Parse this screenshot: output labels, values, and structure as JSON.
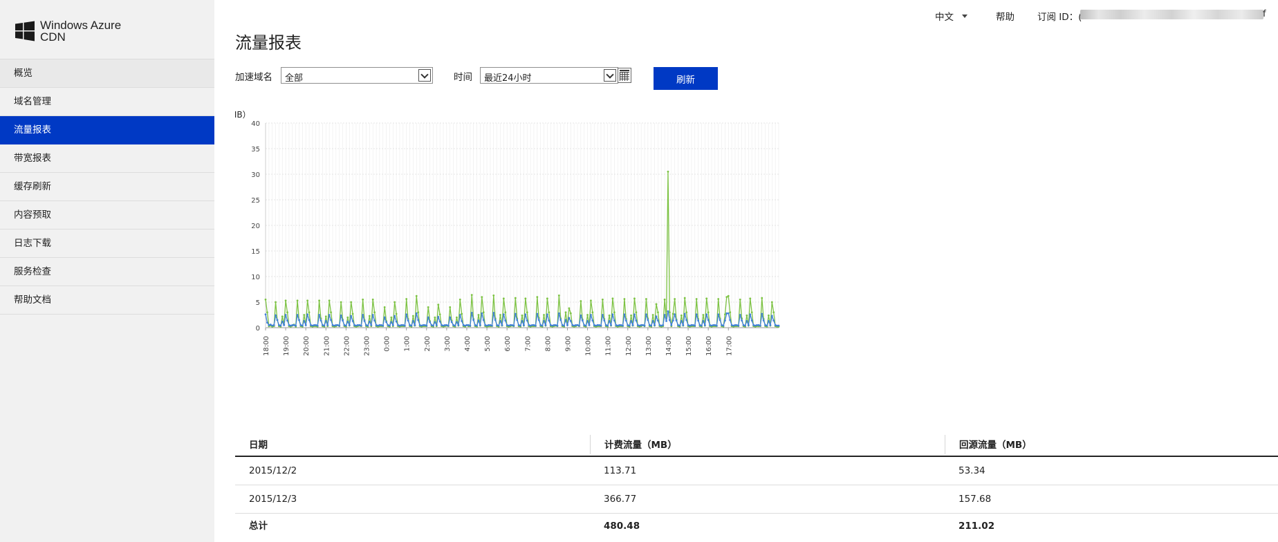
{
  "app": {
    "brand_line1": "Windows Azure",
    "brand_line2": "CDN"
  },
  "topbar": {
    "language": "中文",
    "help": "帮助",
    "subscription_label": "订阅 ID：",
    "subscription_prefix": "(",
    "subscription_suffix": "f"
  },
  "sidebar": {
    "items": [
      {
        "label": "概览"
      },
      {
        "label": "域名管理"
      },
      {
        "label": "流量报表",
        "active": true
      },
      {
        "label": "带宽报表"
      },
      {
        "label": "缓存刷新"
      },
      {
        "label": "内容预取"
      },
      {
        "label": "日志下载"
      },
      {
        "label": "服务检查"
      },
      {
        "label": "帮助文档"
      }
    ]
  },
  "main": {
    "title": "流量报表",
    "filters": {
      "domain_label": "加速域名",
      "domain_value": "全部",
      "time_label": "时间",
      "time_value": "最近24小时",
      "refresh_label": "刷新"
    }
  },
  "colors": {
    "accent": "#0039c4",
    "series_green": "#7cc242",
    "series_blue": "#3f7fd9"
  },
  "chart_data": {
    "type": "line",
    "ylabel": "流量（MB）",
    "ylim": [
      0,
      40
    ],
    "yticks": [
      "0",
      "5",
      "10",
      "15",
      "20",
      "25",
      "30",
      "35",
      "40"
    ],
    "xticks": [
      "18:00",
      "19:00",
      "20:00",
      "21:00",
      "22:00",
      "23:00",
      "0:00",
      "1:00",
      "2:00",
      "3:00",
      "4:00",
      "5:00",
      "6:00",
      "7:00",
      "8:00",
      "9:00",
      "10:00",
      "11:00",
      "12:00",
      "13:00",
      "14:00",
      "15:00",
      "16:00",
      "17:00"
    ],
    "grid": true,
    "x_start_hour": 18,
    "x_step_minutes": 5,
    "series": [
      {
        "color": "#7cc242",
        "values": [
          5.5,
          3.0,
          0.3,
          0.4,
          0.2,
          0.3,
          5.0,
          1.5,
          0.3,
          0.2,
          2.2,
          0.6,
          5.3,
          3.0,
          0.3,
          0.2,
          0.4,
          0.6,
          0.2,
          5.3,
          1.5,
          0.3,
          0.2,
          2.5,
          0.5,
          5.3,
          3.0,
          0.3,
          0.2,
          0.3,
          0.3,
          0.2,
          5.3,
          1.8,
          0.3,
          0.2,
          2.2,
          0.3,
          5.3,
          3.0,
          0.3,
          0.2,
          0.3,
          0.5,
          0.3,
          5.0,
          1.6,
          0.3,
          0.2,
          2.0,
          0.4,
          5.0,
          2.7,
          0.3,
          0.2,
          0.3,
          0.4,
          0.3,
          5.5,
          1.5,
          0.3,
          0.2,
          2.3,
          0.3,
          5.5,
          3.0,
          0.3,
          0.2,
          0.3,
          0.3,
          0.3,
          4.0,
          1.3,
          0.3,
          0.2,
          2.0,
          0.3,
          5.0,
          2.7,
          0.3,
          0.2,
          0.3,
          0.3,
          0.3,
          5.6,
          1.7,
          0.3,
          0.2,
          2.3,
          0.4,
          6.2,
          3.0,
          0.3,
          0.2,
          0.3,
          0.3,
          0.3,
          4.0,
          1.3,
          0.3,
          0.2,
          2.0,
          0.3,
          4.5,
          2.6,
          0.3,
          0.2,
          0.3,
          0.4,
          0.3,
          4.0,
          1.4,
          0.3,
          0.2,
          2.0,
          0.4,
          5.5,
          2.7,
          0.3,
          0.2,
          0.5,
          0.3,
          0.3,
          6.4,
          1.7,
          0.3,
          0.2,
          2.5,
          0.4,
          6.0,
          3.0,
          0.3,
          0.2,
          0.3,
          0.3,
          0.3,
          6.3,
          1.8,
          0.3,
          0.2,
          2.5,
          0.4,
          5.7,
          3.0,
          0.3,
          0.2,
          0.3,
          0.4,
          0.3,
          5.8,
          1.8,
          0.3,
          0.2,
          2.4,
          0.4,
          5.7,
          3.0,
          0.3,
          0.2,
          0.3,
          0.3,
          0.3,
          6.0,
          1.9,
          0.3,
          0.2,
          2.5,
          0.4,
          5.7,
          3.0,
          0.3,
          0.2,
          0.3,
          0.4,
          0.3,
          6.3,
          1.8,
          0.3,
          0.2,
          3.0,
          0.5,
          3.8,
          2.8,
          0.3,
          0.2,
          0.3,
          0.5,
          0.3,
          5.2,
          1.6,
          0.3,
          0.2,
          2.5,
          0.5,
          5.3,
          3.0,
          0.3,
          0.2,
          0.3,
          0.3,
          0.3,
          5.5,
          1.7,
          0.3,
          0.2,
          2.4,
          0.4,
          5.7,
          3.0,
          0.3,
          0.2,
          0.3,
          0.3,
          0.3,
          5.6,
          1.7,
          0.3,
          0.2,
          2.4,
          0.4,
          5.7,
          3.0,
          0.3,
          0.2,
          0.3,
          0.5,
          0.3,
          5.6,
          1.8,
          0.3,
          0.2,
          2.5,
          0.4,
          4.6,
          3.0,
          0.3,
          0.2,
          0.3,
          5.5,
          1.8,
          30.5,
          3.0,
          0.3,
          2.7,
          5.6,
          1.6,
          0.3,
          0.2,
          2.4,
          0.4,
          5.8,
          3.0,
          0.3,
          0.2,
          0.3,
          0.3,
          0.3,
          5.6,
          1.7,
          0.3,
          0.2,
          2.5,
          0.4,
          5.7,
          3.0,
          0.3,
          0.2,
          0.3,
          0.3,
          0.3,
          5.6,
          1.8,
          0.3,
          0.2,
          2.6,
          6.0,
          6.2,
          3.0,
          0.3,
          0.2,
          0.3,
          0.3,
          0.3,
          5.5,
          1.8,
          0.3,
          0.2,
          2.4,
          0.4,
          5.7,
          3.0,
          0.3,
          0.2,
          0.3,
          0.3,
          0.3,
          5.8,
          1.7,
          0.3,
          0.2,
          2.4,
          0.4,
          5.0,
          3.0,
          0.3,
          0.2,
          0.2
        ]
      },
      {
        "color": "#3f7fd9",
        "values": [
          2.6,
          1.0,
          0.5,
          0.6,
          0.4,
          0.5,
          2.4,
          1.5,
          0.5,
          0.4,
          1.2,
          0.5,
          2.5,
          1.4,
          0.5,
          0.4,
          0.5,
          0.5,
          0.4,
          2.5,
          1.5,
          0.5,
          0.4,
          1.3,
          0.5,
          2.6,
          1.5,
          0.5,
          0.4,
          0.5,
          0.5,
          0.4,
          2.5,
          1.4,
          0.5,
          0.4,
          1.3,
          0.5,
          2.5,
          1.5,
          0.5,
          0.4,
          0.5,
          0.5,
          0.4,
          2.4,
          1.4,
          0.5,
          0.4,
          1.2,
          0.5,
          2.3,
          1.3,
          0.5,
          0.4,
          0.5,
          0.5,
          0.4,
          2.5,
          1.3,
          0.5,
          0.4,
          1.2,
          0.5,
          2.5,
          1.4,
          0.5,
          0.4,
          0.5,
          0.5,
          0.4,
          2.0,
          1.1,
          0.5,
          0.4,
          1.1,
          0.5,
          2.3,
          1.2,
          0.5,
          0.4,
          0.5,
          0.5,
          0.4,
          2.6,
          1.4,
          0.5,
          0.4,
          1.3,
          0.5,
          2.8,
          1.5,
          0.5,
          0.4,
          0.5,
          0.5,
          0.4,
          2.0,
          1.1,
          0.5,
          0.4,
          1.1,
          0.5,
          2.1,
          1.2,
          0.5,
          0.4,
          0.5,
          0.5,
          0.4,
          2.0,
          1.1,
          0.5,
          0.4,
          1.1,
          0.5,
          2.5,
          1.3,
          0.5,
          0.4,
          0.5,
          0.5,
          0.4,
          2.9,
          1.5,
          0.5,
          0.4,
          1.4,
          0.5,
          2.8,
          1.5,
          0.5,
          0.4,
          0.5,
          0.5,
          0.4,
          2.9,
          1.5,
          0.5,
          0.4,
          1.3,
          0.5,
          2.6,
          1.4,
          0.5,
          0.4,
          0.5,
          0.5,
          0.4,
          2.7,
          1.5,
          0.5,
          0.4,
          1.3,
          0.5,
          2.6,
          1.4,
          0.5,
          0.4,
          0.5,
          0.5,
          0.4,
          2.7,
          1.5,
          0.5,
          0.4,
          1.3,
          0.5,
          2.6,
          1.4,
          0.5,
          0.4,
          0.5,
          0.5,
          0.4,
          2.8,
          1.5,
          0.5,
          0.4,
          1.5,
          0.5,
          1.9,
          1.3,
          0.5,
          0.4,
          0.5,
          0.5,
          0.4,
          2.4,
          1.4,
          0.5,
          0.4,
          1.3,
          0.5,
          2.5,
          1.4,
          0.5,
          0.4,
          0.5,
          0.5,
          0.4,
          2.5,
          1.4,
          0.5,
          0.4,
          1.3,
          0.5,
          2.6,
          1.4,
          0.5,
          0.4,
          0.5,
          0.5,
          0.4,
          2.6,
          1.4,
          0.5,
          0.4,
          1.3,
          0.5,
          2.6,
          1.4,
          0.5,
          0.4,
          0.5,
          0.5,
          0.4,
          2.6,
          1.5,
          0.5,
          0.4,
          1.3,
          0.5,
          2.2,
          1.4,
          0.5,
          0.4,
          0.5,
          2.5,
          1.3,
          3.2,
          1.5,
          0.5,
          1.4,
          2.6,
          1.4,
          0.5,
          0.4,
          1.3,
          0.5,
          2.7,
          1.5,
          0.5,
          0.4,
          0.5,
          0.5,
          0.4,
          2.6,
          1.4,
          0.5,
          0.4,
          1.3,
          0.5,
          2.6,
          1.5,
          0.5,
          0.4,
          0.5,
          0.5,
          0.4,
          2.6,
          1.5,
          0.5,
          0.4,
          1.4,
          2.8,
          2.8,
          1.5,
          0.5,
          0.4,
          0.5,
          0.5,
          0.4,
          2.5,
          1.4,
          0.5,
          0.4,
          1.3,
          0.5,
          2.6,
          1.4,
          0.5,
          0.4,
          0.5,
          0.5,
          0.4,
          2.7,
          1.4,
          0.5,
          0.4,
          1.3,
          0.5,
          2.3,
          1.4,
          0.5,
          0.4,
          0.4
        ]
      }
    ]
  },
  "table": {
    "headers": [
      "日期",
      "计费流量（MB）",
      "回源流量（MB）"
    ],
    "rows": [
      [
        "2015/12/2",
        "113.71",
        "53.34"
      ],
      [
        "2015/12/3",
        "366.77",
        "157.68"
      ]
    ],
    "total": [
      "总计",
      "480.48",
      "211.02"
    ]
  }
}
